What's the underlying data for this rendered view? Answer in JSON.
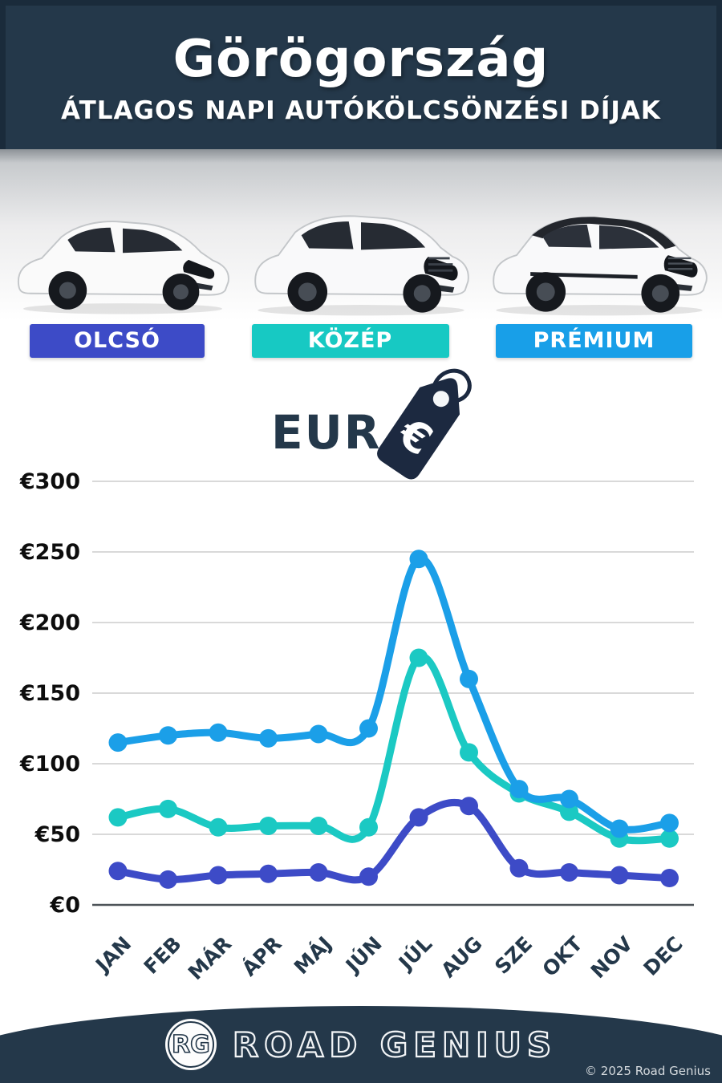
{
  "header": {
    "title": "Görögország",
    "subtitle": "ÁTLAGOS NAPI AUTÓKÖLCSÖNZÉSI DÍJAK"
  },
  "categories": [
    {
      "label": "OLCSÓ",
      "color": "#3d4bc7",
      "car": "economy-hatchback"
    },
    {
      "label": "KÖZÉP",
      "color": "#17c9c3",
      "car": "midsize-suv"
    },
    {
      "label": "PRÉMIUM",
      "color": "#189fe8",
      "car": "premium-suv"
    }
  ],
  "currency": {
    "label": "EUR",
    "symbol": "€"
  },
  "chart_data": {
    "type": "line",
    "categories": [
      "JAN",
      "FEB",
      "MÁR",
      "ÁPR",
      "MÁJ",
      "JÚN",
      "JÚL",
      "AUG",
      "SZE",
      "OKT",
      "NOV",
      "DEC"
    ],
    "series": [
      {
        "name": "PRÉMIUM",
        "color": "#1b9fe8",
        "values": [
          115,
          120,
          122,
          118,
          121,
          125,
          245,
          160,
          82,
          75,
          54,
          58
        ]
      },
      {
        "name": "KÖZÉP",
        "color": "#1bc9c3",
        "values": [
          62,
          68,
          55,
          56,
          56,
          55,
          175,
          108,
          79,
          66,
          47,
          47
        ]
      },
      {
        "name": "OLCSÓ",
        "color": "#3d4bc7",
        "values": [
          24,
          18,
          21,
          22,
          23,
          20,
          62,
          70,
          26,
          23,
          21,
          19
        ]
      }
    ],
    "yticks": [
      0,
      50,
      100,
      150,
      200,
      250,
      300
    ],
    "ylim": [
      0,
      300
    ],
    "y_prefix": "€",
    "grid": true,
    "legend": "colored-bands-above-chart",
    "title": "Görögország — átlagos napi autókölcsönzési díjak (EUR)"
  },
  "footer": {
    "logo_initials": "RG",
    "brand": "ROAD GENIUS",
    "copyright": "© 2025 Road Genius"
  },
  "colors": {
    "header_bg": "#24384a",
    "header_border": "#1a2b3b",
    "gridline": "#d9d9d9",
    "axis_line": "#4d5358",
    "tick_text": "#0d0d0d",
    "month_text": "#24384a",
    "tag": "#1c2940"
  }
}
